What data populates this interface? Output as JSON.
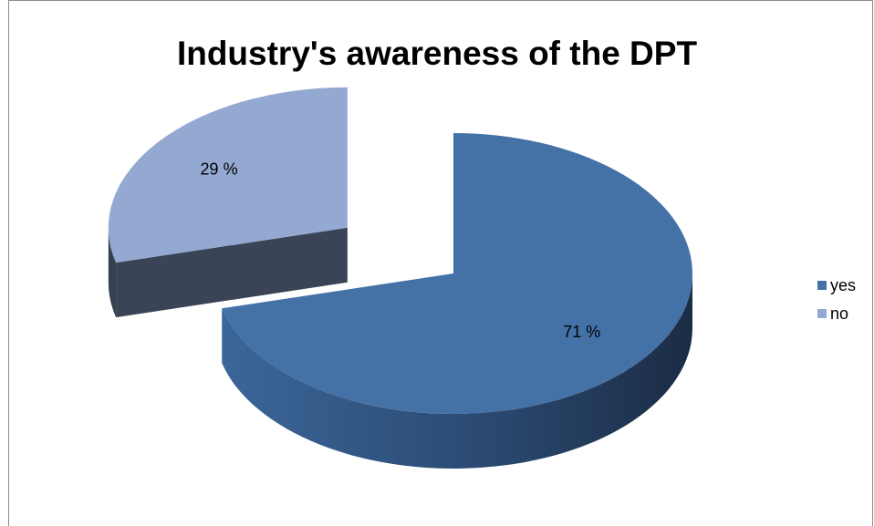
{
  "chart_data": {
    "type": "pie",
    "title": "Industry's awareness of the DPT",
    "categories": [
      "yes",
      "no"
    ],
    "values": [
      71,
      29
    ],
    "data_labels": [
      "71 %",
      "29 %"
    ],
    "colors": [
      "#4472a6",
      "#93a9d1"
    ],
    "legend_position": "right",
    "style": "3d-exploded"
  },
  "legend": {
    "items": [
      {
        "label": "yes",
        "color": "#4472a6"
      },
      {
        "label": "no",
        "color": "#93a9d1"
      }
    ]
  }
}
